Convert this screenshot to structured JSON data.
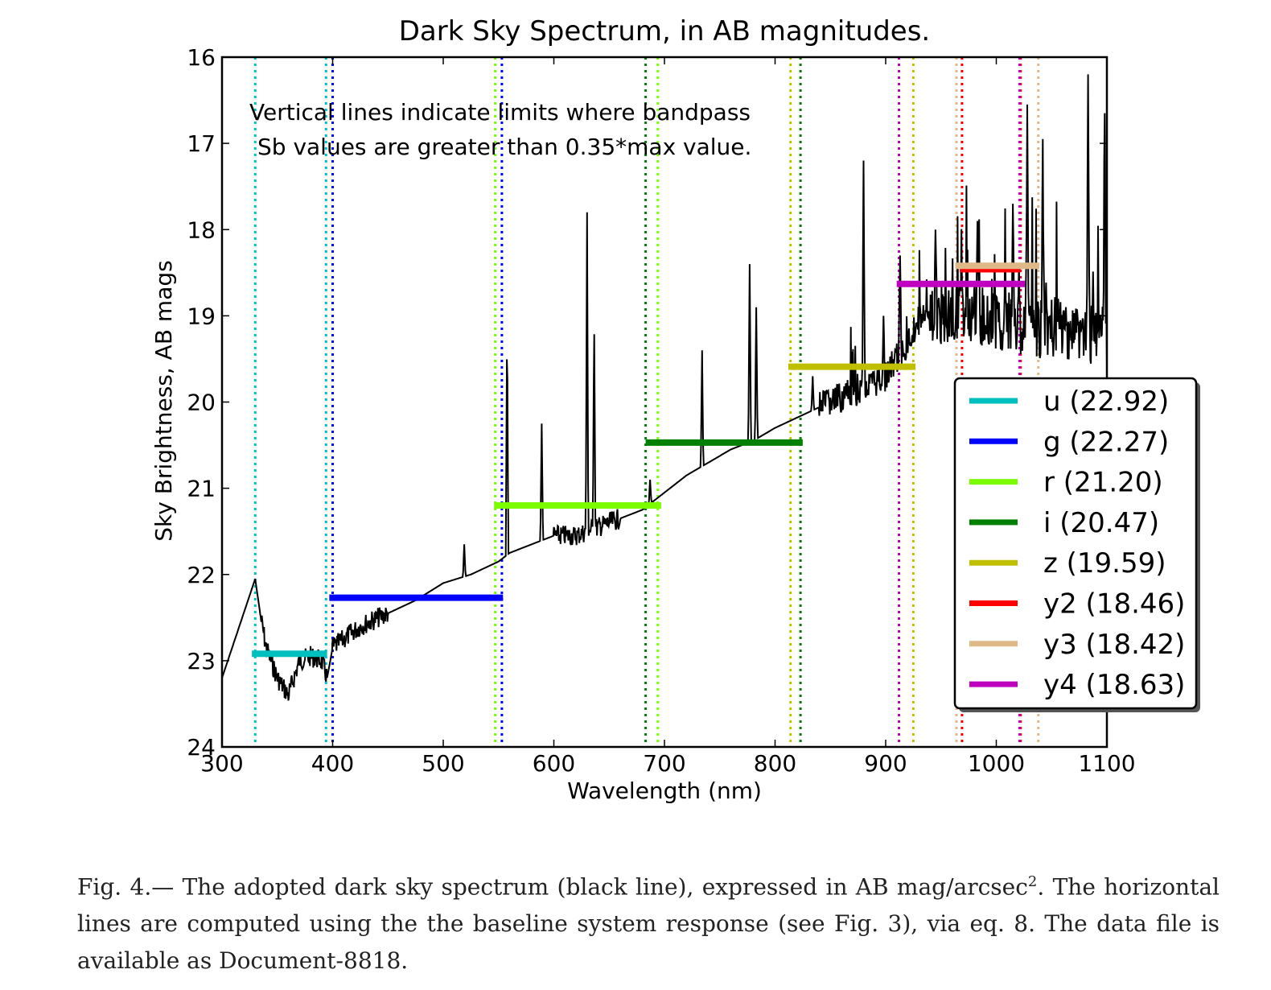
{
  "chart_data": {
    "type": "line",
    "title": "Dark Sky Spectrum, in AB magnitudes.",
    "xlabel": "Wavelength (nm)",
    "ylabel": "Sky Brightness, AB mags",
    "xlim": [
      300,
      1100
    ],
    "ylim": [
      24,
      16
    ],
    "y_inverted": true,
    "xticks": [
      "300",
      "400",
      "500",
      "600",
      "700",
      "800",
      "900",
      "1000",
      "1100"
    ],
    "yticks": [
      "16",
      "17",
      "18",
      "19",
      "20",
      "21",
      "22",
      "23",
      "24"
    ],
    "annotation": [
      "Vertical lines indicate limits where bandpass",
      "Sb values are greater than 0.35*max value."
    ],
    "legend_placement": "right",
    "spectrum": {
      "baseline_points": [
        [
          300,
          23.2
        ],
        [
          330,
          22.05
        ],
        [
          335,
          22.5
        ],
        [
          340,
          22.85
        ],
        [
          350,
          23.2
        ],
        [
          360,
          23.4
        ],
        [
          370,
          23.0
        ],
        [
          380,
          22.95
        ],
        [
          390,
          23.0
        ],
        [
          395,
          23.2
        ],
        [
          400,
          22.85
        ],
        [
          410,
          22.75
        ],
        [
          425,
          22.6
        ],
        [
          450,
          22.45
        ],
        [
          475,
          22.3
        ],
        [
          500,
          22.1
        ],
        [
          525,
          22.0
        ],
        [
          550,
          21.85
        ],
        [
          555,
          21.8
        ],
        [
          560,
          21.75
        ],
        [
          580,
          21.65
        ],
        [
          600,
          21.55
        ],
        [
          620,
          21.55
        ],
        [
          640,
          21.45
        ],
        [
          660,
          21.35
        ],
        [
          680,
          21.25
        ],
        [
          700,
          21.05
        ],
        [
          720,
          20.85
        ],
        [
          740,
          20.7
        ],
        [
          760,
          20.55
        ],
        [
          780,
          20.45
        ],
        [
          800,
          20.3
        ],
        [
          820,
          20.18
        ],
        [
          850,
          20.0
        ],
        [
          880,
          19.85
        ],
        [
          900,
          19.7
        ],
        [
          910,
          19.5
        ],
        [
          920,
          19.3
        ],
        [
          930,
          19.05
        ],
        [
          950,
          19.0
        ],
        [
          970,
          18.95
        ],
        [
          1000,
          19.05
        ],
        [
          1020,
          19.1
        ],
        [
          1040,
          19.15
        ],
        [
          1060,
          19.15
        ],
        [
          1080,
          19.2
        ],
        [
          1100,
          19.25
        ]
      ],
      "emission_lines": [
        [
          519,
          21.65
        ],
        [
          557.7,
          19.05
        ],
        [
          589,
          20.25
        ],
        [
          630,
          17.8
        ],
        [
          636.4,
          19.0
        ],
        [
          687,
          20.9
        ],
        [
          734,
          19.4
        ],
        [
          777,
          18.4
        ],
        [
          783,
          18.9
        ],
        [
          834,
          19.7
        ],
        [
          880,
          17.2
        ],
        [
          898,
          19.0
        ],
        [
          913,
          18.3
        ],
        [
          945,
          18.0
        ],
        [
          983,
          17.9
        ],
        [
          1015,
          17.7
        ],
        [
          1028,
          16.55
        ],
        [
          1042,
          16.95
        ],
        [
          1083,
          16.2
        ],
        [
          1098,
          16.65
        ]
      ],
      "noise_regions": [
        [
          335,
          395
        ],
        [
          400,
          450
        ],
        [
          600,
          660
        ],
        [
          840,
          1100
        ]
      ]
    },
    "bands": [
      {
        "name": "u",
        "label": "u (22.92)",
        "mag": 22.92,
        "color": "#00bfbf",
        "x_range": [
          327,
          395
        ],
        "limits": [
          330,
          394
        ]
      },
      {
        "name": "g",
        "label": "g (22.27)",
        "mag": 22.27,
        "color": "#0000ff",
        "x_range": [
          397,
          554
        ],
        "limits": [
          400,
          553
        ]
      },
      {
        "name": "r",
        "label": "r (21.20)",
        "mag": 21.2,
        "color": "#7cfc00",
        "x_range": [
          546,
          697
        ],
        "limits": [
          547,
          694
        ]
      },
      {
        "name": "i",
        "label": "i (20.47)",
        "mag": 20.47,
        "color": "#008000",
        "x_range": [
          683,
          825
        ],
        "limits": [
          683,
          823
        ]
      },
      {
        "name": "z",
        "label": "z (19.59)",
        "mag": 19.59,
        "color": "#bfbf00",
        "x_range": [
          812,
          927
        ],
        "limits": [
          814,
          925
        ]
      },
      {
        "name": "y2",
        "label": "y2 (18.46)",
        "mag": 18.46,
        "color": "#ff0000",
        "x_range": [
          967,
          1022
        ],
        "limits": [
          969,
          1022
        ]
      },
      {
        "name": "y3",
        "label": "y3 (18.42)",
        "mag": 18.42,
        "color": "#deb887",
        "x_range": [
          963,
          1039
        ],
        "limits": [
          964,
          1038
        ]
      },
      {
        "name": "y4",
        "label": "y4 (18.63)",
        "mag": 18.63,
        "color": "#bf00bf",
        "x_range": [
          910,
          1026
        ],
        "limits": [
          912,
          1021
        ]
      }
    ]
  },
  "caption": {
    "part1": "Fig.  4.— The adopted dark sky spectrum (black line), expressed in AB mag/arcsec",
    "sup": "2",
    "part2": ".  The horizontal lines are computed using the the baseline system response (see Fig. 3), via eq. 8.  The data file is available as Document-8818."
  }
}
